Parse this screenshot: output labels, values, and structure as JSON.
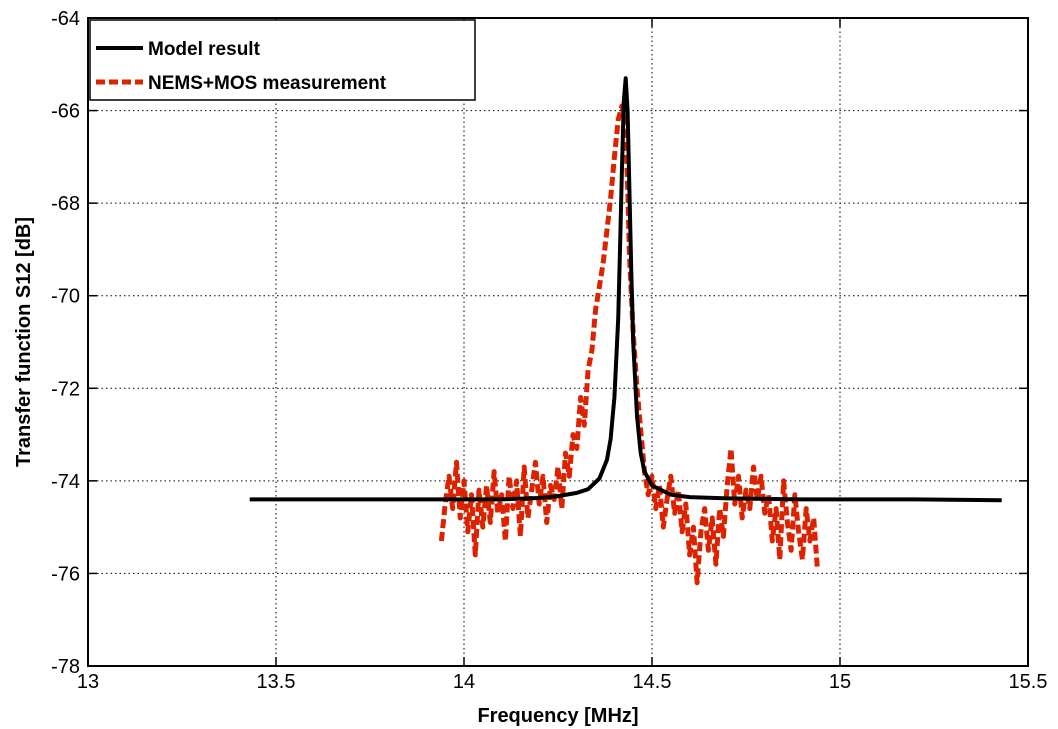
{
  "chart_data": {
    "type": "line",
    "title": "",
    "xlabel": "Frequency [MHz]",
    "ylabel": "Transfer function S12 [dB]",
    "xlim": [
      13,
      15.5
    ],
    "ylim": [
      -78,
      -64
    ],
    "xticks": [
      13,
      13.5,
      14,
      14.5,
      15,
      15.5
    ],
    "xtick_labels": [
      "13",
      "13.5",
      "14",
      "14.5",
      "15",
      "15.5"
    ],
    "yticks": [
      -78,
      -76,
      -74,
      -72,
      -70,
      -68,
      -66,
      -64
    ],
    "ytick_labels": [
      "-78",
      "-76",
      "-74",
      "-72",
      "-70",
      "-68",
      "-66",
      "-64"
    ],
    "grid": true,
    "legend_position": "top-left",
    "series": [
      {
        "name": "Model result",
        "color": "#000000",
        "style": "solid",
        "x": [
          13.43,
          13.8,
          14.0,
          14.1,
          14.2,
          14.25,
          14.3,
          14.33,
          14.36,
          14.38,
          14.39,
          14.4,
          14.41,
          14.415,
          14.42,
          14.425,
          14.43,
          14.435,
          14.44,
          14.445,
          14.45,
          14.46,
          14.47,
          14.48,
          14.5,
          14.55,
          14.6,
          14.7,
          14.9,
          15.2,
          15.43
        ],
        "y": [
          -74.4,
          -74.4,
          -74.4,
          -74.4,
          -74.37,
          -74.33,
          -74.26,
          -74.18,
          -73.95,
          -73.55,
          -73.1,
          -72.2,
          -70.5,
          -69.0,
          -67.3,
          -65.8,
          -65.3,
          -66.0,
          -67.7,
          -69.5,
          -71.0,
          -72.6,
          -73.4,
          -73.8,
          -74.1,
          -74.3,
          -74.35,
          -74.38,
          -74.4,
          -74.4,
          -74.42
        ]
      },
      {
        "name": "NEMS+MOS measurement",
        "color": "#dd2200",
        "style": "dashed",
        "x": [
          13.94,
          13.95,
          13.96,
          13.97,
          13.98,
          13.99,
          14.0,
          14.01,
          14.02,
          14.03,
          14.04,
          14.05,
          14.06,
          14.07,
          14.08,
          14.09,
          14.1,
          14.11,
          14.12,
          14.13,
          14.14,
          14.15,
          14.16,
          14.17,
          14.18,
          14.19,
          14.2,
          14.21,
          14.22,
          14.23,
          14.24,
          14.25,
          14.26,
          14.27,
          14.28,
          14.29,
          14.3,
          14.31,
          14.32,
          14.33,
          14.34,
          14.35,
          14.36,
          14.37,
          14.38,
          14.39,
          14.4,
          14.41,
          14.42,
          14.425,
          14.43,
          14.435,
          14.44,
          14.45,
          14.46,
          14.47,
          14.48,
          14.49,
          14.5,
          14.51,
          14.52,
          14.53,
          14.54,
          14.55,
          14.56,
          14.57,
          14.58,
          14.59,
          14.6,
          14.61,
          14.62,
          14.63,
          14.64,
          14.65,
          14.66,
          14.67,
          14.68,
          14.69,
          14.7,
          14.71,
          14.72,
          14.73,
          14.74,
          14.75,
          14.76,
          14.77,
          14.78,
          14.79,
          14.8,
          14.81,
          14.82,
          14.83,
          14.84,
          14.85,
          14.86,
          14.87,
          14.88,
          14.89,
          14.9,
          14.91,
          14.92,
          14.93,
          14.94
        ],
        "y": [
          -75.3,
          -74.5,
          -73.9,
          -74.6,
          -73.6,
          -74.8,
          -74.0,
          -75.1,
          -74.3,
          -75.6,
          -74.2,
          -75.0,
          -74.1,
          -74.9,
          -73.8,
          -74.7,
          -74.3,
          -75.3,
          -73.9,
          -74.6,
          -74.0,
          -75.2,
          -73.7,
          -74.8,
          -74.2,
          -73.6,
          -74.5,
          -73.9,
          -74.9,
          -74.1,
          -74.4,
          -73.7,
          -74.6,
          -73.4,
          -73.9,
          -73.0,
          -73.3,
          -72.2,
          -72.8,
          -71.6,
          -71.2,
          -70.3,
          -69.8,
          -69.3,
          -68.6,
          -67.9,
          -67.0,
          -66.2,
          -65.9,
          -66.1,
          -66.5,
          -67.6,
          -69.1,
          -70.8,
          -72.0,
          -72.9,
          -73.8,
          -74.3,
          -73.9,
          -74.6,
          -74.1,
          -75.0,
          -74.4,
          -73.9,
          -74.7,
          -74.2,
          -75.1,
          -74.5,
          -75.6,
          -75.0,
          -76.2,
          -75.1,
          -74.6,
          -75.5,
          -74.8,
          -75.8,
          -74.6,
          -75.2,
          -74.1,
          -73.3,
          -74.5,
          -73.9,
          -74.8,
          -74.2,
          -74.6,
          -73.7,
          -74.4,
          -73.9,
          -74.7,
          -74.3,
          -75.3,
          -74.6,
          -75.7,
          -74.0,
          -74.9,
          -75.5,
          -74.3,
          -75.1,
          -75.7,
          -74.6,
          -75.3,
          -74.8,
          -75.9
        ]
      }
    ]
  }
}
